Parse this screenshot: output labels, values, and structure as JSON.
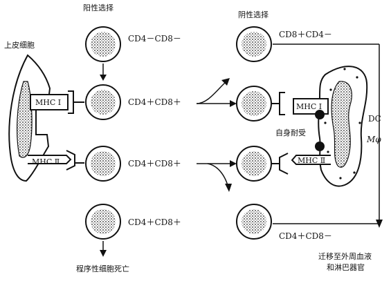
{
  "title": {
    "positive_selection": "阳性选择",
    "negative_selection": "阴性选择"
  },
  "labels": {
    "epithelial_cell": "上皮细胞",
    "mhc1": "MHC Ⅰ",
    "mhc2": "MHC Ⅱ",
    "self_tolerance": "自身耐受",
    "dc": "DC",
    "macrophage": "Mφ",
    "apoptosis": "程序性细胞死亡",
    "migrate_line1": "迁移至外周血液",
    "migrate_line2": "和淋巴器官"
  },
  "cells": {
    "left_top": "CD4－CD8－",
    "left_mid1": "CD4＋CD8＋",
    "left_mid2": "CD4＋CD8＋",
    "left_bottom": "CD4＋CD8＋",
    "right_top": "CD8＋CD4－",
    "right_bottom": "CD4＋CD8－"
  }
}
